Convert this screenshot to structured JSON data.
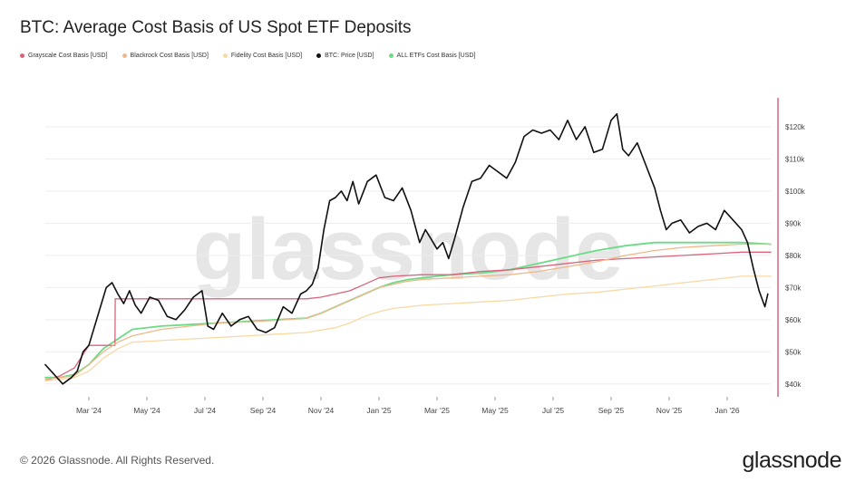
{
  "title": "BTC: Average Cost Basis of US Spot ETF Deposits",
  "footer": "© 2026 Glassnode. All Rights Reserved.",
  "brand": "glassnode",
  "watermark": "glassnode",
  "legend": [
    {
      "label": "Grayscale Cost Basis [USD]",
      "color": "#d9657c"
    },
    {
      "label": "Blackrock Cost Basis [USD]",
      "color": "#f0b88a"
    },
    {
      "label": "Fidelity Cost Basis [USD]",
      "color": "#f7d9a4"
    },
    {
      "label": "BTC: Price [USD]",
      "color": "#111111"
    },
    {
      "label": "ALL ETFs Cost Basis [USD]",
      "color": "#6bdb86"
    }
  ],
  "chart_data": {
    "type": "line",
    "title": "BTC: Average Cost Basis of US Spot ETF Deposits",
    "x_ticks": [
      "Mar '24",
      "May '24",
      "Jul '24",
      "Sep '24",
      "Nov '24",
      "Jan '25",
      "Mar '25",
      "May '25",
      "Jul '25",
      "Sep '25",
      "Nov '25",
      "Jan '26"
    ],
    "y_ticks": [
      "$40k",
      "$50k",
      "$60k",
      "$70k",
      "$80k",
      "$90k",
      "$100k",
      "$110k",
      "$120k"
    ],
    "y_values": [
      40000,
      50000,
      60000,
      70000,
      80000,
      90000,
      100000,
      110000,
      120000
    ],
    "ylim": [
      36000,
      129000
    ],
    "x_months_range": [
      0.0,
      25.0
    ],
    "x_tick_months": [
      1.5,
      3.5,
      5.5,
      7.5,
      9.5,
      11.5,
      13.5,
      15.5,
      17.5,
      19.5,
      21.5,
      23.5
    ],
    "grid": true,
    "series": [
      {
        "name": "BTC: Price [USD]",
        "color": "#111111",
        "width": 1.6,
        "x": [
          0.0,
          0.3,
          0.6,
          0.9,
          1.1,
          1.3,
          1.5,
          1.7,
          1.9,
          2.1,
          2.3,
          2.5,
          2.7,
          2.9,
          3.1,
          3.3,
          3.6,
          3.9,
          4.2,
          4.5,
          4.8,
          5.1,
          5.4,
          5.6,
          5.8,
          6.1,
          6.4,
          6.7,
          7.0,
          7.3,
          7.6,
          7.9,
          8.2,
          8.5,
          8.8,
          9.0,
          9.2,
          9.4,
          9.6,
          9.8,
          10.0,
          10.2,
          10.4,
          10.6,
          10.8,
          11.1,
          11.4,
          11.7,
          12.0,
          12.3,
          12.6,
          12.9,
          13.1,
          13.3,
          13.5,
          13.7,
          13.9,
          14.1,
          14.4,
          14.7,
          15.0,
          15.3,
          15.6,
          15.9,
          16.2,
          16.5,
          16.8,
          17.1,
          17.4,
          17.7,
          18.0,
          18.3,
          18.6,
          18.9,
          19.2,
          19.5,
          19.7,
          19.9,
          20.1,
          20.4,
          20.7,
          21.0,
          21.2,
          21.4,
          21.6,
          21.9,
          22.2,
          22.5,
          22.8,
          23.1,
          23.4,
          23.7,
          24.0,
          24.2,
          24.4,
          24.6,
          24.8,
          24.9
        ],
        "y": [
          46000,
          43000,
          40000,
          42000,
          44000,
          50000,
          52000,
          58000,
          64000,
          70000,
          71500,
          68000,
          65000,
          69000,
          64500,
          62000,
          67000,
          66000,
          61000,
          60000,
          63000,
          67000,
          69000,
          58000,
          57000,
          62000,
          58000,
          60000,
          61000,
          57000,
          56000,
          57500,
          64000,
          62000,
          68000,
          69000,
          71000,
          76000,
          88000,
          97000,
          98000,
          100000,
          97000,
          103000,
          96000,
          103000,
          105000,
          98000,
          97000,
          101000,
          94000,
          84000,
          88000,
          85000,
          82000,
          84000,
          79000,
          85000,
          95000,
          103000,
          104000,
          108000,
          106000,
          104000,
          109000,
          117000,
          119000,
          118000,
          119000,
          116000,
          122000,
          116000,
          120000,
          112000,
          113000,
          122000,
          124000,
          113000,
          111000,
          115000,
          108000,
          101000,
          94000,
          88000,
          90000,
          91000,
          87000,
          89000,
          90000,
          88000,
          94000,
          91000,
          88000,
          84000,
          76000,
          69000,
          64000,
          68000
        ]
      },
      {
        "name": "ALL ETFs Cost Basis [USD]",
        "color": "#6bdb86",
        "width": 1.8,
        "x": [
          0.0,
          0.5,
          1.0,
          1.5,
          2.0,
          2.5,
          3.0,
          4.0,
          5.0,
          6.0,
          7.0,
          8.0,
          9.0,
          9.5,
          10.0,
          10.5,
          11.0,
          11.5,
          12.0,
          12.5,
          13.0,
          13.5,
          14.0,
          15.0,
          16.0,
          17.0,
          18.0,
          19.0,
          20.0,
          21.0,
          22.0,
          23.0,
          24.0,
          25.0
        ],
        "y": [
          42000,
          42000,
          43000,
          46000,
          51000,
          54000,
          57000,
          58000,
          58500,
          59000,
          59500,
          60000,
          60500,
          62000,
          64000,
          66000,
          68000,
          70000,
          71500,
          72500,
          73000,
          73500,
          74000,
          74500,
          75500,
          77500,
          79500,
          81500,
          83000,
          84000,
          84000,
          84000,
          84000,
          83500
        ]
      },
      {
        "name": "Grayscale Cost Basis [USD]",
        "color": "#d9657c",
        "width": 1.3,
        "x": [
          0.0,
          0.5,
          1.0,
          1.5,
          2.0,
          2.4,
          2.41,
          3.0,
          4.0,
          5.0,
          6.0,
          7.0,
          8.0,
          9.0,
          9.5,
          10.0,
          10.5,
          11.0,
          11.5,
          12.0,
          13.0,
          14.0,
          15.0,
          16.0,
          17.0,
          18.0,
          19.0,
          20.0,
          21.0,
          22.0,
          23.0,
          24.0,
          25.0
        ],
        "y": [
          41000,
          42500,
          45000,
          52000,
          52000,
          52000,
          66500,
          66500,
          66500,
          66500,
          66500,
          66500,
          66500,
          66500,
          67000,
          68000,
          69000,
          71000,
          73000,
          73500,
          74000,
          74000,
          75000,
          75500,
          76500,
          77500,
          78500,
          79000,
          79500,
          80000,
          80500,
          81000,
          81000
        ]
      },
      {
        "name": "Blackrock Cost Basis [USD]",
        "color": "#f0b88a",
        "width": 1.3,
        "x": [
          0.0,
          0.5,
          1.0,
          1.5,
          2.0,
          2.5,
          3.0,
          4.0,
          5.0,
          6.0,
          7.0,
          8.0,
          9.0,
          9.5,
          10.0,
          10.5,
          11.0,
          11.5,
          12.0,
          12.5,
          13.0,
          14.0,
          15.0,
          16.0,
          17.0,
          18.0,
          19.0,
          20.0,
          21.0,
          22.0,
          23.0,
          24.0,
          25.0
        ],
        "y": [
          41500,
          42000,
          42500,
          46000,
          50000,
          53000,
          55000,
          57000,
          58000,
          59000,
          59300,
          59800,
          60500,
          62000,
          64000,
          66000,
          68000,
          70000,
          71000,
          72000,
          72500,
          73000,
          73500,
          74000,
          75000,
          76500,
          78000,
          80000,
          81500,
          82500,
          83000,
          83500,
          83500
        ]
      },
      {
        "name": "Fidelity Cost Basis [USD]",
        "color": "#f7d9a4",
        "width": 1.3,
        "x": [
          0.0,
          0.5,
          1.0,
          1.5,
          2.0,
          2.5,
          3.0,
          4.0,
          5.0,
          6.0,
          7.0,
          8.0,
          9.0,
          10.0,
          10.5,
          11.0,
          11.5,
          12.0,
          13.0,
          14.0,
          15.0,
          16.0,
          17.0,
          18.0,
          19.0,
          20.0,
          21.0,
          22.0,
          23.0,
          24.0,
          25.0
        ],
        "y": [
          41000,
          41500,
          42000,
          44000,
          48000,
          51000,
          53000,
          53500,
          54000,
          54500,
          55000,
          55500,
          56000,
          57500,
          59000,
          61000,
          62500,
          63500,
          64500,
          65000,
          65500,
          66000,
          67000,
          68000,
          68500,
          69500,
          70500,
          71500,
          72500,
          73500,
          73500
        ]
      }
    ]
  }
}
